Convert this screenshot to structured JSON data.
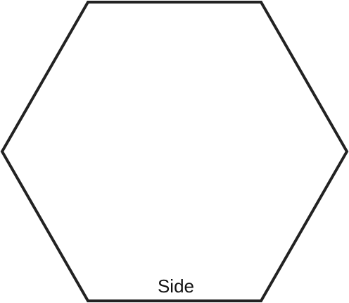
{
  "diagram": {
    "shape": "regular hexagon",
    "side_label": "Side",
    "stroke_color": "#222222",
    "text_color": "#111111",
    "background_color": "#ffffff"
  }
}
